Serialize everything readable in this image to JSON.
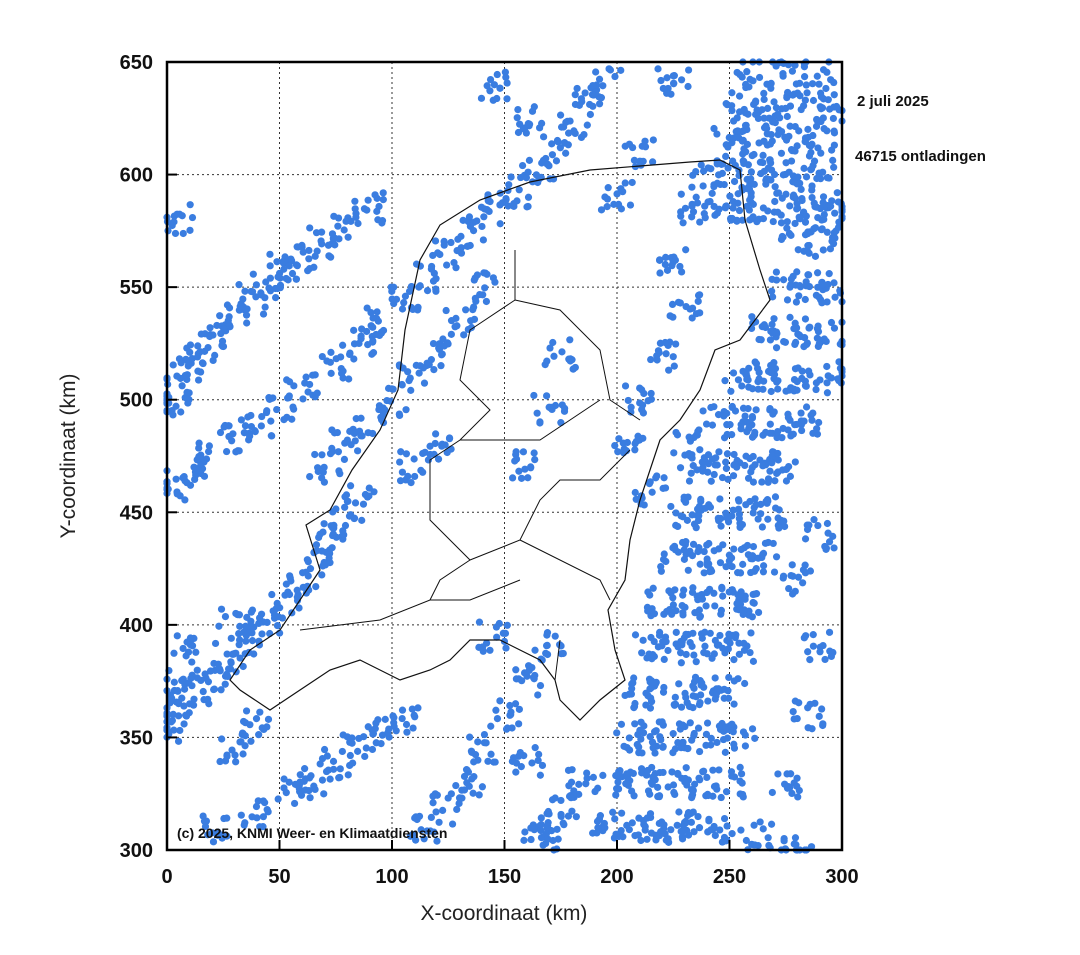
{
  "chart_data": {
    "type": "scatter",
    "title": "",
    "date": "2 juli 2025",
    "count_label": "46715 ontladingen",
    "copyright": "(c) 2025, KNMI Weer- en Klimaatdiensten",
    "xlabel": "X-coordinaat (km)",
    "ylabel": "Y-coordinaat (km)",
    "xlim": [
      0,
      300
    ],
    "ylim": [
      300,
      650
    ],
    "xticks": [
      "0",
      "50",
      "100",
      "150",
      "200",
      "250",
      "300"
    ],
    "yticks": [
      "300",
      "350",
      "400",
      "450",
      "500",
      "550",
      "600",
      "650"
    ],
    "grid": true,
    "point_color": "#3a7de0",
    "representative_points": [
      [
        3,
        505
      ],
      [
        8,
        515
      ],
      [
        15,
        522
      ],
      [
        22,
        530
      ],
      [
        30,
        538
      ],
      [
        38,
        545
      ],
      [
        45,
        552
      ],
      [
        52,
        558
      ],
      [
        60,
        563
      ],
      [
        70,
        570
      ],
      [
        80,
        578
      ],
      [
        90,
        585
      ],
      [
        5,
        580
      ],
      [
        3,
        498
      ],
      [
        2,
        462
      ],
      [
        10,
        468
      ],
      [
        20,
        475
      ],
      [
        30,
        482
      ],
      [
        40,
        488
      ],
      [
        50,
        495
      ],
      [
        60,
        505
      ],
      [
        75,
        515
      ],
      [
        85,
        525
      ],
      [
        95,
        535
      ],
      [
        105,
        545
      ],
      [
        115,
        555
      ],
      [
        125,
        565
      ],
      [
        135,
        575
      ],
      [
        145,
        585
      ],
      [
        155,
        592
      ],
      [
        165,
        600
      ],
      [
        172,
        610
      ],
      [
        180,
        620
      ],
      [
        188,
        632
      ],
      [
        160,
        625
      ],
      [
        145,
        640
      ],
      [
        70,
        470
      ],
      [
        80,
        480
      ],
      [
        90,
        490
      ],
      [
        100,
        500
      ],
      [
        110,
        510
      ],
      [
        120,
        520
      ],
      [
        130,
        535
      ],
      [
        140,
        550
      ],
      [
        110,
        470
      ],
      [
        120,
        480
      ],
      [
        85,
        455
      ],
      [
        80,
        445
      ],
      [
        0,
        355
      ],
      [
        5,
        362
      ],
      [
        12,
        370
      ],
      [
        20,
        378
      ],
      [
        28,
        385
      ],
      [
        36,
        392
      ],
      [
        44,
        400
      ],
      [
        52,
        408
      ],
      [
        60,
        418
      ],
      [
        66,
        428
      ],
      [
        72,
        438
      ],
      [
        5,
        375
      ],
      [
        10,
        390
      ],
      [
        30,
        400
      ],
      [
        20,
        310
      ],
      [
        40,
        315
      ],
      [
        55,
        325
      ],
      [
        65,
        330
      ],
      [
        75,
        338
      ],
      [
        85,
        345
      ],
      [
        95,
        352
      ],
      [
        105,
        358
      ],
      [
        30,
        345
      ],
      [
        40,
        355
      ],
      [
        115,
        310
      ],
      [
        125,
        318
      ],
      [
        135,
        330
      ],
      [
        140,
        345
      ],
      [
        150,
        360
      ],
      [
        160,
        375
      ],
      [
        170,
        390
      ],
      [
        145,
        395
      ],
      [
        160,
        340
      ],
      [
        165,
        310
      ],
      [
        175,
        318
      ],
      [
        185,
        330
      ],
      [
        170,
        305
      ],
      [
        195,
        310
      ],
      [
        205,
        310
      ],
      [
        215,
        310
      ],
      [
        225,
        310
      ],
      [
        235,
        310
      ],
      [
        245,
        310
      ],
      [
        200,
        330
      ],
      [
        210,
        330
      ],
      [
        220,
        330
      ],
      [
        230,
        330
      ],
      [
        240,
        330
      ],
      [
        250,
        330
      ],
      [
        205,
        350
      ],
      [
        215,
        350
      ],
      [
        225,
        350
      ],
      [
        235,
        350
      ],
      [
        245,
        350
      ],
      [
        255,
        350
      ],
      [
        210,
        370
      ],
      [
        220,
        370
      ],
      [
        230,
        370
      ],
      [
        240,
        370
      ],
      [
        250,
        370
      ],
      [
        215,
        390
      ],
      [
        225,
        390
      ],
      [
        235,
        390
      ],
      [
        245,
        390
      ],
      [
        255,
        390
      ],
      [
        220,
        410
      ],
      [
        230,
        410
      ],
      [
        240,
        410
      ],
      [
        250,
        410
      ],
      [
        260,
        410
      ],
      [
        225,
        430
      ],
      [
        235,
        430
      ],
      [
        245,
        430
      ],
      [
        255,
        430
      ],
      [
        265,
        430
      ],
      [
        230,
        450
      ],
      [
        240,
        450
      ],
      [
        250,
        450
      ],
      [
        260,
        450
      ],
      [
        270,
        450
      ],
      [
        235,
        470
      ],
      [
        245,
        470
      ],
      [
        255,
        470
      ],
      [
        265,
        470
      ],
      [
        275,
        470
      ],
      [
        245,
        490
      ],
      [
        255,
        490
      ],
      [
        265,
        490
      ],
      [
        275,
        490
      ],
      [
        285,
        490
      ],
      [
        255,
        510
      ],
      [
        265,
        510
      ],
      [
        275,
        510
      ],
      [
        285,
        510
      ],
      [
        295,
        510
      ],
      [
        265,
        530
      ],
      [
        275,
        530
      ],
      [
        285,
        530
      ],
      [
        295,
        530
      ],
      [
        275,
        550
      ],
      [
        285,
        550
      ],
      [
        295,
        550
      ],
      [
        280,
        570
      ],
      [
        290,
        570
      ],
      [
        295,
        580
      ],
      [
        280,
        300
      ],
      [
        275,
        330
      ],
      [
        285,
        360
      ],
      [
        290,
        390
      ],
      [
        280,
        420
      ],
      [
        290,
        440
      ],
      [
        235,
        585
      ],
      [
        245,
        585
      ],
      [
        255,
        585
      ],
      [
        265,
        585
      ],
      [
        275,
        585
      ],
      [
        285,
        585
      ],
      [
        295,
        585
      ],
      [
        240,
        600
      ],
      [
        250,
        600
      ],
      [
        260,
        600
      ],
      [
        270,
        600
      ],
      [
        280,
        600
      ],
      [
        290,
        600
      ],
      [
        250,
        615
      ],
      [
        260,
        615
      ],
      [
        270,
        615
      ],
      [
        280,
        615
      ],
      [
        290,
        615
      ],
      [
        255,
        630
      ],
      [
        265,
        630
      ],
      [
        275,
        630
      ],
      [
        285,
        630
      ],
      [
        295,
        630
      ],
      [
        260,
        645
      ],
      [
        275,
        645
      ],
      [
        290,
        645
      ],
      [
        205,
        480
      ],
      [
        210,
        500
      ],
      [
        220,
        520
      ],
      [
        230,
        540
      ],
      [
        225,
        560
      ],
      [
        200,
        590
      ],
      [
        210,
        610
      ],
      [
        195,
        640
      ],
      [
        225,
        640
      ],
      [
        175,
        520
      ],
      [
        170,
        495
      ],
      [
        160,
        470
      ],
      [
        262,
        307
      ],
      [
        230,
        480
      ],
      [
        215,
        460
      ]
    ]
  }
}
